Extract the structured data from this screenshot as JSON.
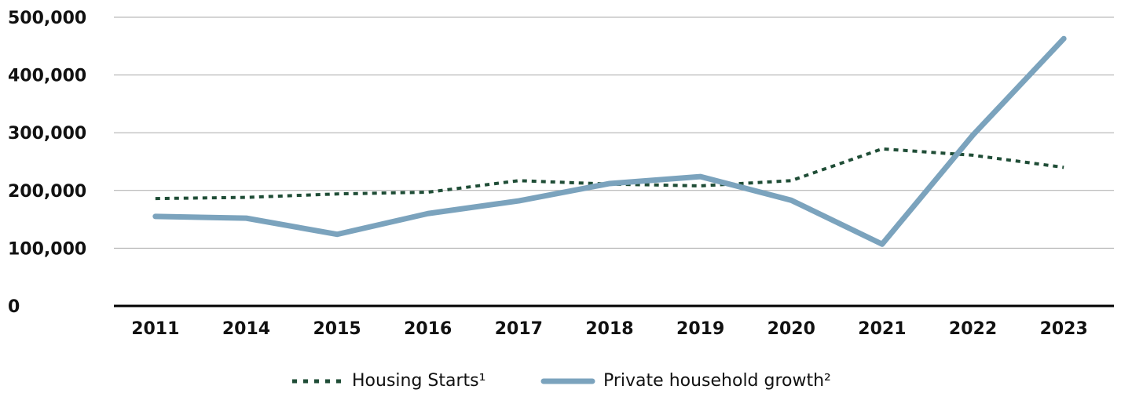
{
  "chart_data": {
    "type": "line",
    "categories": [
      "2011",
      "2014",
      "2015",
      "2016",
      "2017",
      "2018",
      "2019",
      "2020",
      "2021",
      "2022",
      "2023"
    ],
    "series": [
      {
        "name": "Housing Starts¹",
        "color": "#1f4d36",
        "dash": true,
        "values": [
          186000,
          188000,
          194000,
          197000,
          217000,
          211000,
          208000,
          217000,
          272000,
          261000,
          240000
        ]
      },
      {
        "name": "Private household growth²",
        "color": "#7ba3bd",
        "dash": false,
        "values": [
          155000,
          152000,
          124000,
          160000,
          182000,
          212000,
          224000,
          183000,
          107000,
          296000,
          463000
        ]
      }
    ],
    "ylim": [
      0,
      500000
    ],
    "yticks": [
      0,
      {
        "value": 100000,
        "label": "100,000"
      },
      {
        "value": 200000,
        "label": "200,000"
      },
      {
        "value": 300000,
        "label": "300,000"
      },
      {
        "value": 400000,
        "label": "400,000"
      },
      {
        "value": 500000,
        "label": "500,000"
      }
    ],
    "grid": true,
    "legend": "bottom"
  }
}
